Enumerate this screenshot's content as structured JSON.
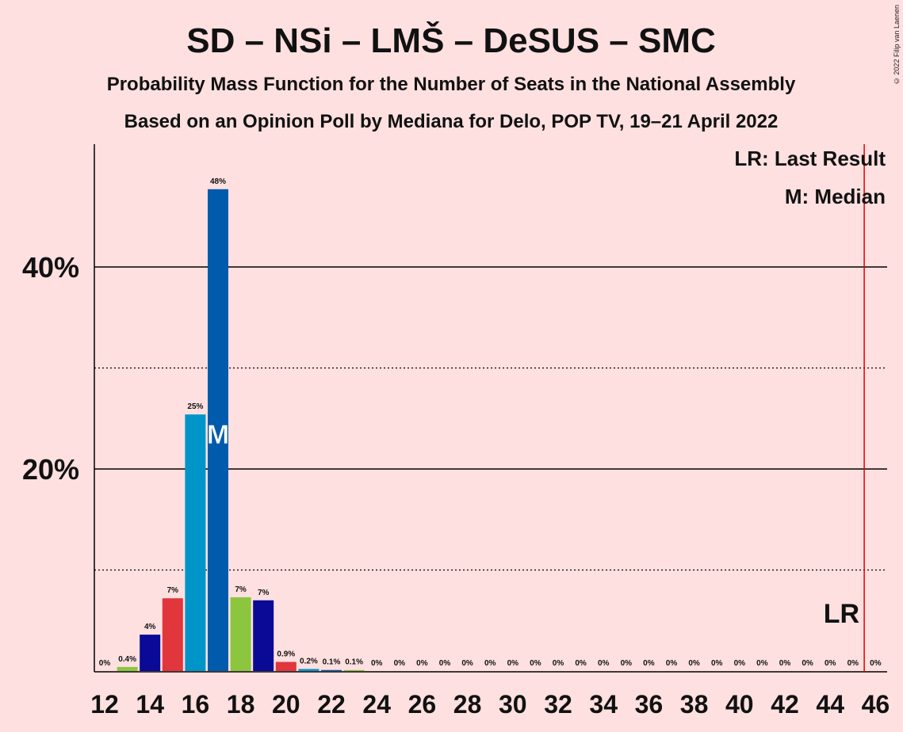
{
  "header": {
    "title": "SD – NSi – LMŠ – DeSUS – SMC",
    "subtitle": "Probability Mass Function for the Number of Seats in the National Assembly",
    "subtitle2": "Based on an Opinion Poll by Mediana for Delo, POP TV, 19–21 April 2022",
    "copyright": "© 2022 Filip van Laenen"
  },
  "legend": {
    "last_result": "LR: Last Result",
    "median": "M: Median"
  },
  "colors": {
    "background": "#FFE0E0",
    "red": "#E0363C",
    "light_blue": "#0095C8",
    "dark_blue": "#005BAC",
    "green": "#8CC63F",
    "navy": "#0A0A96",
    "last_result_line": "#E00000"
  },
  "chart_data": {
    "type": "bar",
    "x": [
      12,
      13,
      14,
      15,
      16,
      17,
      18,
      19,
      20,
      21,
      22,
      23,
      24,
      25,
      26,
      27,
      28,
      29,
      30,
      31,
      32,
      33,
      34,
      35,
      36,
      37,
      38,
      39,
      40,
      41,
      42,
      43,
      44,
      45,
      46
    ],
    "values": [
      0,
      0.4,
      3.6,
      7.2,
      25.4,
      47.7,
      7.3,
      7.0,
      0.9,
      0.2,
      0.1,
      0.1,
      0,
      0,
      0,
      0,
      0,
      0,
      0,
      0,
      0,
      0,
      0,
      0,
      0,
      0,
      0,
      0,
      0,
      0,
      0,
      0,
      0,
      0,
      0
    ],
    "labels": [
      "0%",
      "0.4%",
      "4%",
      "7%",
      "25%",
      "48%",
      "7%",
      "7%",
      "0.9%",
      "0.2%",
      "0.1%",
      "0.1%",
      "0%",
      "0%",
      "0%",
      "0%",
      "0%",
      "0%",
      "0%",
      "0%",
      "0%",
      "0%",
      "0%",
      "0%",
      "0%",
      "0%",
      "0%",
      "0%",
      "0%",
      "0%",
      "0%",
      "0%",
      "0%",
      "0%",
      "0%"
    ],
    "bar_colors": [
      "#8CC63F",
      "#8CC63F",
      "#0A0A96",
      "#E0363C",
      "#0095C8",
      "#005BAC",
      "#8CC63F",
      "#0A0A96",
      "#E0363C",
      "#0095C8",
      "#005BAC",
      "#8CC63F",
      "#0A0A96",
      "#E0363C",
      "#0095C8",
      "#005BAC",
      "#8CC63F",
      "#0A0A96",
      "#E0363C",
      "#0095C8",
      "#005BAC",
      "#8CC63F",
      "#0A0A96",
      "#E0363C",
      "#0095C8",
      "#005BAC",
      "#8CC63F",
      "#0A0A96",
      "#E0363C",
      "#0095C8",
      "#005BAC",
      "#8CC63F",
      "#0A0A96",
      "#E0363C",
      "#0095C8"
    ],
    "x_tick_labels": [
      "12",
      "14",
      "16",
      "18",
      "20",
      "22",
      "24",
      "26",
      "28",
      "30",
      "32",
      "34",
      "36",
      "38",
      "40",
      "42",
      "44",
      "46"
    ],
    "y_tick_labels": [
      "20%",
      "40%"
    ],
    "ylim": [
      0,
      50
    ],
    "major_grid": [
      20,
      40
    ],
    "minor_grid": [
      10,
      30
    ],
    "median": 17,
    "median_label": "M",
    "last_result": 45.5,
    "last_result_label": "LR"
  }
}
